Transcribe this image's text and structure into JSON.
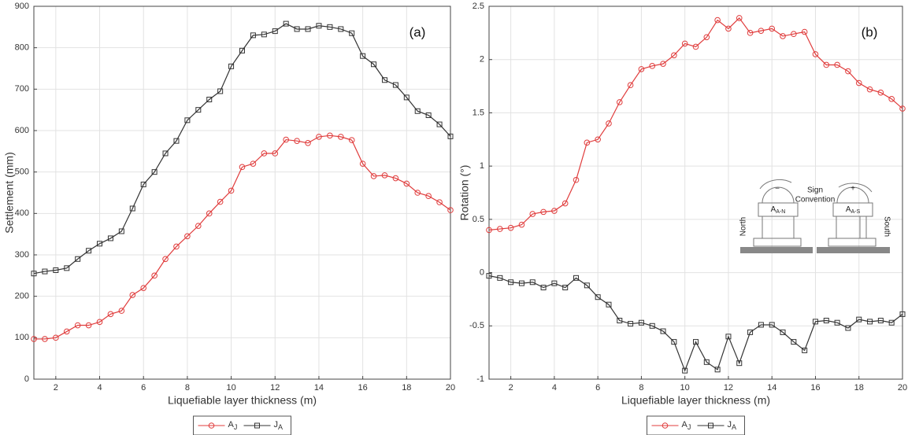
{
  "chart_data": [
    {
      "type": "line",
      "panel_label": "(a)",
      "x_label": "Liquefiable layer thickness (m)",
      "y_label": "Settlement (mm)",
      "x": [
        1,
        1.5,
        2,
        2.5,
        3,
        3.5,
        4,
        4.5,
        5,
        5.5,
        6,
        6.5,
        7,
        7.5,
        8,
        8.5,
        9,
        9.5,
        10,
        10.5,
        11,
        11.5,
        12,
        12.5,
        13,
        13.5,
        14,
        14.5,
        15,
        15.5,
        16,
        16.5,
        17,
        17.5,
        18,
        18.5,
        19,
        19.5,
        20
      ],
      "series": [
        {
          "name": "A",
          "name_sub": "J",
          "color": "#e03c3c",
          "marker": "circle",
          "values": [
            97,
            97,
            100,
            115,
            130,
            130,
            138,
            157,
            165,
            203,
            220,
            250,
            290,
            320,
            345,
            370,
            400,
            428,
            455,
            512,
            520,
            545,
            545,
            578,
            575,
            570,
            585,
            588,
            585,
            577,
            520,
            490,
            492,
            485,
            472,
            450,
            442,
            427,
            408
          ]
        },
        {
          "name": "J",
          "name_sub": "A",
          "color": "#333333",
          "marker": "square",
          "values": [
            255,
            260,
            263,
            268,
            290,
            310,
            327,
            340,
            357,
            412,
            470,
            500,
            545,
            575,
            625,
            650,
            675,
            695,
            755,
            793,
            830,
            832,
            840,
            858,
            845,
            845,
            853,
            850,
            845,
            835,
            780,
            760,
            722,
            710,
            680,
            647,
            637,
            615,
            586
          ]
        }
      ],
      "xlim": [
        1,
        20
      ],
      "xticks": [
        2,
        4,
        6,
        8,
        10,
        12,
        14,
        16,
        18,
        20
      ],
      "ylim": [
        0,
        900
      ],
      "yticks": [
        0,
        100,
        200,
        300,
        400,
        500,
        600,
        700,
        800,
        900
      ],
      "grid": true
    },
    {
      "type": "line",
      "panel_label": "(b)",
      "x_label": "Liquefiable layer thickness (m)",
      "y_label": "Rotation (°)",
      "x": [
        1,
        1.5,
        2,
        2.5,
        3,
        3.5,
        4,
        4.5,
        5,
        5.5,
        6,
        6.5,
        7,
        7.5,
        8,
        8.5,
        9,
        9.5,
        10,
        10.5,
        11,
        11.5,
        12,
        12.5,
        13,
        13.5,
        14,
        14.5,
        15,
        15.5,
        16,
        16.5,
        17,
        17.5,
        18,
        18.5,
        19,
        19.5,
        20
      ],
      "series": [
        {
          "name": "A",
          "name_sub": "J",
          "color": "#e03c3c",
          "marker": "circle",
          "values": [
            0.4,
            0.41,
            0.42,
            0.45,
            0.55,
            0.57,
            0.58,
            0.65,
            0.87,
            1.22,
            1.25,
            1.4,
            1.6,
            1.76,
            1.91,
            1.94,
            1.96,
            2.04,
            2.15,
            2.12,
            2.21,
            2.37,
            2.29,
            2.39,
            2.25,
            2.27,
            2.29,
            2.22,
            2.24,
            2.26,
            2.05,
            1.95,
            1.95,
            1.89,
            1.78,
            1.72,
            1.69,
            1.63,
            1.54
          ]
        },
        {
          "name": "J",
          "name_sub": "A",
          "color": "#333333",
          "marker": "square",
          "values": [
            -0.03,
            -0.05,
            -0.09,
            -0.1,
            -0.09,
            -0.14,
            -0.1,
            -0.14,
            -0.05,
            -0.12,
            -0.23,
            -0.3,
            -0.45,
            -0.48,
            -0.47,
            -0.5,
            -0.55,
            -0.65,
            -0.92,
            -0.65,
            -0.84,
            -0.91,
            -0.6,
            -0.85,
            -0.56,
            -0.49,
            -0.49,
            -0.56,
            -0.65,
            -0.73,
            -0.46,
            -0.45,
            -0.47,
            -0.52,
            -0.44,
            -0.46,
            -0.45,
            -0.47,
            -0.39
          ]
        }
      ],
      "xlim": [
        1,
        20
      ],
      "xticks": [
        2,
        4,
        6,
        8,
        10,
        12,
        14,
        16,
        18,
        20
      ],
      "ylim": [
        -1,
        2.5
      ],
      "yticks": [
        -1,
        -0.5,
        0,
        0.5,
        1,
        1.5,
        2,
        2.5
      ],
      "grid": true,
      "inset": {
        "sign": "Sign",
        "convention": "Convention",
        "minus": "−",
        "plus": "+",
        "north": "North",
        "south": "South",
        "left_label": "A",
        "left_label_sub": "A-N",
        "right_label": "A",
        "right_label_sub": "A-S"
      }
    }
  ]
}
